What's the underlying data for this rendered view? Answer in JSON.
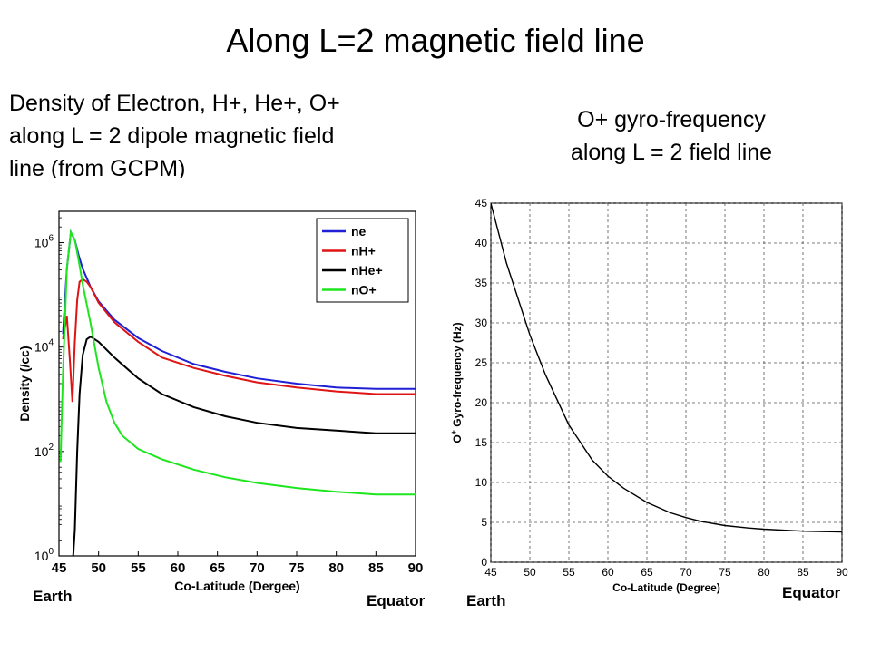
{
  "slide": {
    "title": "Along L=2 magnetic field line",
    "left_caption": [
      "Density of Electron, H+, He+, O+",
      "along L = 2 dipole magnetic field",
      "line (from GCPM)"
    ],
    "right_caption": [
      "O+ gyro-frequency",
      "along L = 2 field line"
    ],
    "labels": {
      "earth_left": "Earth",
      "equator_left": "Equator",
      "earth_right": "Earth",
      "equator_right": "Equator"
    }
  },
  "chart_data": [
    {
      "type": "line",
      "xlabel": "Co-Latitude (Dergee)",
      "ylabel": "Density (/cc)",
      "xlim": [
        45,
        90
      ],
      "ylim_log10": [
        0,
        6.6
      ],
      "yscale": "log",
      "grid": false,
      "legend_position": "top-right",
      "xticks": [
        "45",
        "50",
        "55",
        "60",
        "65",
        "70",
        "75",
        "80",
        "85",
        "90"
      ],
      "yticks": [
        {
          "base": "10",
          "exp": "0",
          "value": 1
        },
        {
          "base": "10",
          "exp": "2",
          "value": 100
        },
        {
          "base": "10",
          "exp": "4",
          "value": 10000
        },
        {
          "base": "10",
          "exp": "6",
          "value": 1000000
        }
      ],
      "series": [
        {
          "name": "ne",
          "color": "#1f1fd6",
          "x": [
            45.5,
            46,
            46.5,
            47,
            47.5,
            48,
            49,
            50,
            52,
            55,
            58,
            62,
            66,
            70,
            75,
            80,
            85,
            90
          ],
          "y": [
            17783,
            316228,
            1584893,
            1122018,
            562341,
            316228,
            141254,
            74989,
            33497,
            14962,
            8414,
            4732,
            3350,
            2512,
            1995,
            1679,
            1585,
            1585
          ]
        },
        {
          "name": "nH+",
          "color": "#e01414",
          "x": [
            45.5,
            46,
            46.4,
            46.7,
            47,
            47.3,
            47.6,
            48,
            48.5,
            49,
            50,
            52,
            55,
            58,
            62,
            66,
            70,
            75,
            80,
            85,
            90
          ],
          "y": [
            14125,
            39811,
            5012,
            891,
            12589,
            79433,
            177828,
            199526,
            177828,
            141254,
            70795,
            29854,
            12589,
            6310,
            3981,
            2818,
            2113,
            1679,
            1413,
            1259,
            1259
          ]
        },
        {
          "name": "nHe+",
          "color": "#000000",
          "x": [
            46.8,
            47,
            47.3,
            47.6,
            48,
            48.5,
            49,
            50,
            52,
            55,
            58,
            62,
            66,
            70,
            75,
            80,
            85,
            90
          ],
          "y": [
            1,
            3.16,
            100,
            1259,
            7079,
            14125,
            15849,
            12589,
            6310,
            2512,
            1259,
            708,
            473,
            355,
            282,
            251,
            224,
            224
          ]
        },
        {
          "name": "nO+",
          "color": "#1ee61e",
          "x": [
            45.2,
            45.5,
            46,
            46.5,
            47,
            47.5,
            48,
            49,
            50,
            51,
            52,
            53,
            55,
            58,
            62,
            66,
            70,
            75,
            80,
            85,
            90
          ],
          "y": [
            63,
            3162,
            316228,
            1584893,
            1122018,
            446684,
            158489,
            28184,
            3981,
            891,
            355,
            200,
            112,
            71,
            45,
            32,
            25,
            20,
            17,
            15,
            15
          ]
        }
      ]
    },
    {
      "type": "line",
      "xlabel": "Co-Latitude (Degree)",
      "ylabel": "Gyro-frequency (Hz)",
      "ylabel_prefix": "O",
      "ylabel_sup": "+",
      "xlim": [
        45,
        90
      ],
      "ylim": [
        0,
        45
      ],
      "grid": true,
      "xticks": [
        "45",
        "50",
        "55",
        "60",
        "65",
        "70",
        "75",
        "80",
        "85",
        "90"
      ],
      "yticks": [
        "0",
        "5",
        "10",
        "15",
        "20",
        "25",
        "30",
        "35",
        "40",
        "45"
      ],
      "series": [
        {
          "color": "#000000",
          "x": [
            45,
            47,
            50,
            52,
            55,
            58,
            60,
            62,
            65,
            68,
            70,
            72,
            75,
            78,
            80,
            85,
            90
          ],
          "y": [
            45,
            37.5,
            28.5,
            23.5,
            17.2,
            12.8,
            10.8,
            9.3,
            7.5,
            6.2,
            5.6,
            5.1,
            4.6,
            4.3,
            4.15,
            3.9,
            3.8
          ]
        }
      ]
    }
  ]
}
